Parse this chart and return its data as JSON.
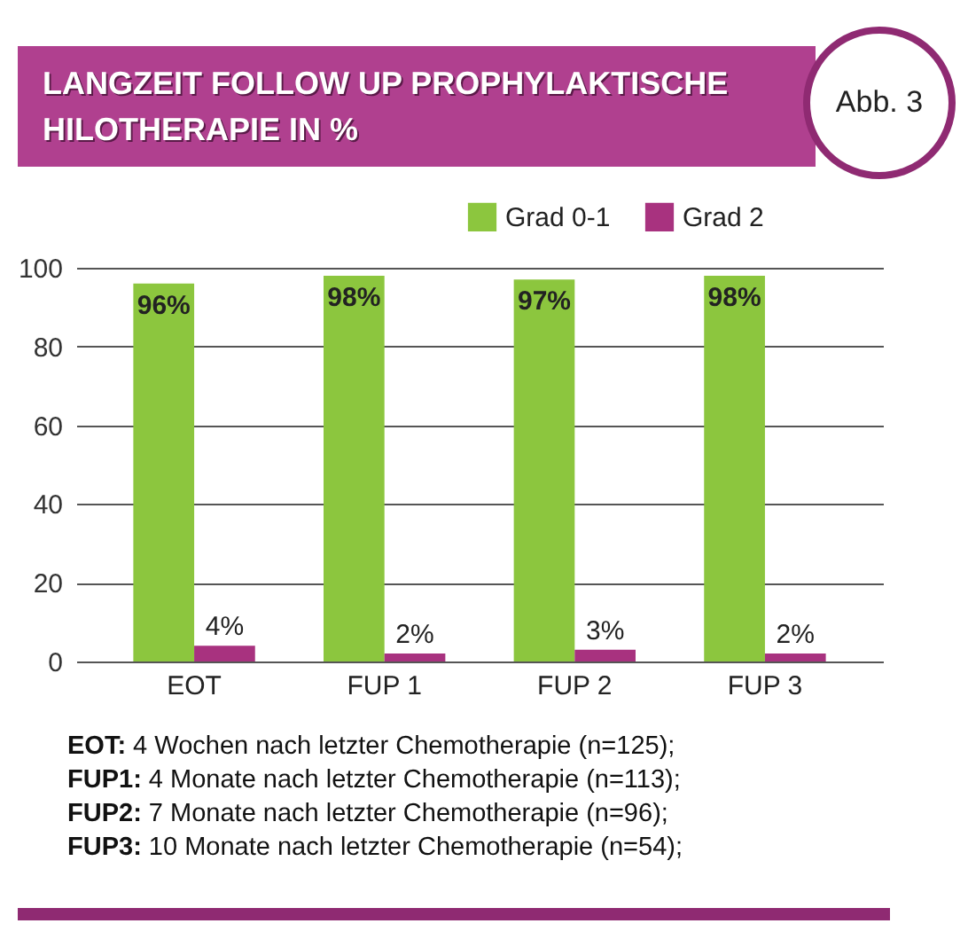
{
  "chart_data": {
    "type": "bar",
    "title": "LANGZEIT FOLLOW UP PROPHYLAKTISCHE HILOTHERAPIE IN %",
    "subtitle": "Abb. 3",
    "categories": [
      "EOT",
      "FUP 1",
      "FUP 2",
      "FUP 3"
    ],
    "series": [
      {
        "name": "Grad 0-1",
        "color": "#8cc63e",
        "values": [
          96,
          98,
          97,
          98
        ],
        "value_labels": [
          "96%",
          "98%",
          "97%",
          "98%"
        ]
      },
      {
        "name": "Grad 2",
        "color": "#a8327f",
        "values": [
          4,
          2,
          3,
          2
        ],
        "value_labels": [
          "4%",
          "2%",
          "3%",
          "2%"
        ]
      }
    ],
    "ylim": [
      0,
      100
    ],
    "yticks": [
      0,
      20,
      40,
      60,
      80,
      100
    ],
    "grid": "y",
    "legend": "top right",
    "annotations": [
      "EOT: 4 Wochen nach letzter Chemotherapie (n=125);",
      "FUP1: 4 Monate nach letzter Chemotherapie (n=113);",
      "FUP2: 7 Monate nach letzter Chemotherapie (n=96);",
      "FUP3: 10 Monate nach letzter Chemotherapie (n=54);"
    ]
  }
}
